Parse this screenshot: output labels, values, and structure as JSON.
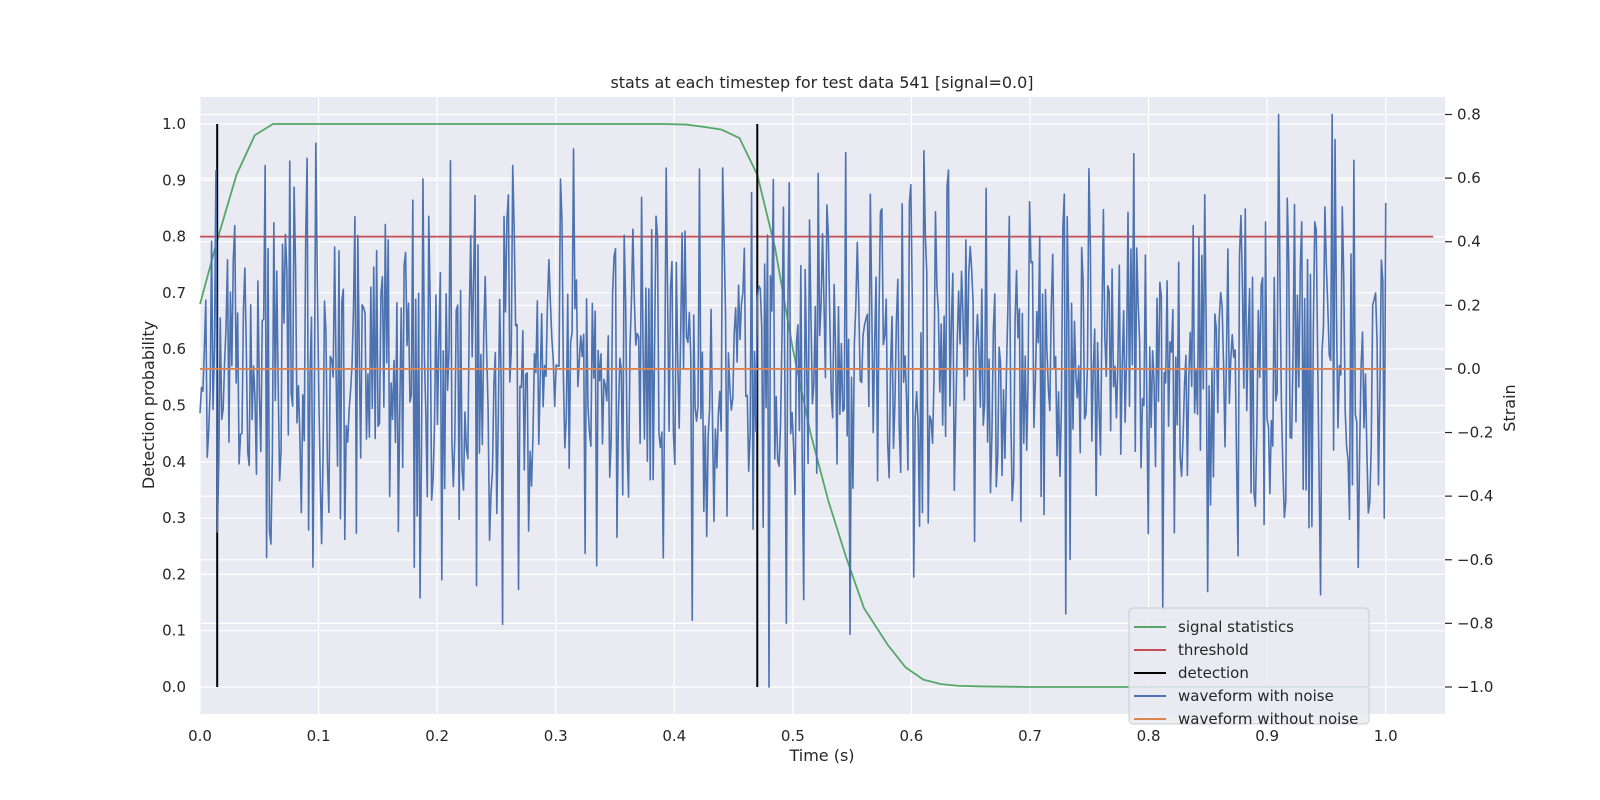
{
  "chart_data": {
    "type": "line",
    "title": "stats at each timestep for test data 541 [signal=0.0]",
    "xlabel": "Time (s)",
    "ylabel": "Detection probability",
    "y2label": "Strain",
    "xlim": [
      0.0,
      1.05
    ],
    "ylim": [
      -0.048,
      1.048
    ],
    "y2lim": [
      -1.085,
      0.855
    ],
    "xticks": [
      "0.0",
      "0.1",
      "0.2",
      "0.3",
      "0.4",
      "0.5",
      "0.6",
      "0.7",
      "0.8",
      "0.9",
      "1.0"
    ],
    "yticks": [
      "0.0",
      "0.1",
      "0.2",
      "0.3",
      "0.4",
      "0.5",
      "0.6",
      "0.7",
      "0.8",
      "0.9",
      "1.0"
    ],
    "y2ticks": [
      "−1.0",
      "−0.8",
      "−0.6",
      "−0.4",
      "−0.2",
      "0.0",
      "0.2",
      "0.4",
      "0.6",
      "0.8"
    ],
    "grid": true,
    "legend_position": "lower-right",
    "colors": {
      "signal_statistics": "#55a868",
      "threshold": "#c44e52",
      "detection": "#000000",
      "waveform_with_noise": "#4c72b0",
      "waveform_without_noise": "#dd8452",
      "background": "#eaeaf2",
      "grid": "#ffffff"
    },
    "series": [
      {
        "name": "signal statistics",
        "axis": "left",
        "x": [
          0.0,
          0.0154,
          0.0308,
          0.0462,
          0.0615,
          0.0769,
          0.1,
          0.2,
          0.3,
          0.39,
          0.41,
          0.425,
          0.44,
          0.455,
          0.47,
          0.485,
          0.5,
          0.515,
          0.53,
          0.545,
          0.56,
          0.58,
          0.595,
          0.61,
          0.625,
          0.64,
          0.66,
          0.7,
          0.8,
          0.9,
          0.985
        ],
        "y": [
          0.68,
          0.8,
          0.91,
          0.98,
          1.0,
          1.0,
          1.0,
          1.0,
          1.0,
          1.0,
          0.999,
          0.995,
          0.99,
          0.975,
          0.91,
          0.78,
          0.6,
          0.45,
          0.33,
          0.23,
          0.14,
          0.075,
          0.035,
          0.013,
          0.005,
          0.002,
          0.001,
          0.0,
          0.0,
          0.0,
          0.0
        ]
      },
      {
        "name": "threshold",
        "axis": "left",
        "x": [
          0.0,
          1.04
        ],
        "y": [
          0.8,
          0.8
        ]
      },
      {
        "name": "detection",
        "axis": "left",
        "type": "vlines",
        "x": [
          0.0145,
          0.47
        ],
        "ymin": 0.0,
        "ymax": 1.0
      },
      {
        "name": "waveform with noise",
        "axis": "right",
        "x": [
          0.0,
          1.0
        ],
        "n_points": 820,
        "seed": 541,
        "y_range": [
          -1.0,
          0.8
        ],
        "spikes": [
          [
            0.098,
            0.71
          ],
          [
            0.185,
            -0.72
          ],
          [
            0.415,
            -0.79
          ],
          [
            0.48,
            -1.0
          ],
          [
            0.545,
            0.68
          ],
          [
            0.91,
            0.8
          ],
          [
            0.955,
            0.8
          ],
          [
            0.945,
            -0.71
          ],
          [
            0.85,
            -0.7
          ],
          [
            0.73,
            -0.77
          ],
          [
            0.055,
            0.64
          ]
        ]
      },
      {
        "name": "waveform without noise",
        "axis": "right",
        "x": [
          0.0,
          1.0
        ],
        "y": [
          0.0,
          0.0
        ]
      }
    ],
    "legend": [
      "signal statistics",
      "threshold",
      "detection",
      "waveform with noise",
      "waveform without noise"
    ]
  }
}
